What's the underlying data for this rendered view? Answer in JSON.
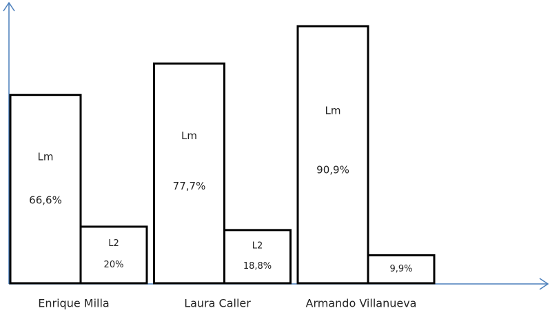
{
  "chart_data": {
    "type": "bar",
    "categories": [
      "Enrique Milla",
      "Laura Caller",
      "Armando Villanueva"
    ],
    "series": [
      {
        "name": "Lm",
        "color": "#ffffff",
        "values": [
          66.6,
          77.7,
          90.9
        ],
        "value_labels": [
          "66,6%",
          "77,7%",
          "90,9%"
        ]
      },
      {
        "name": "L2",
        "color": "#ffffff",
        "values": [
          20,
          18.8,
          9.9
        ],
        "value_labels": [
          "20%",
          "18,8%",
          "9,9%"
        ]
      }
    ]
  }
}
